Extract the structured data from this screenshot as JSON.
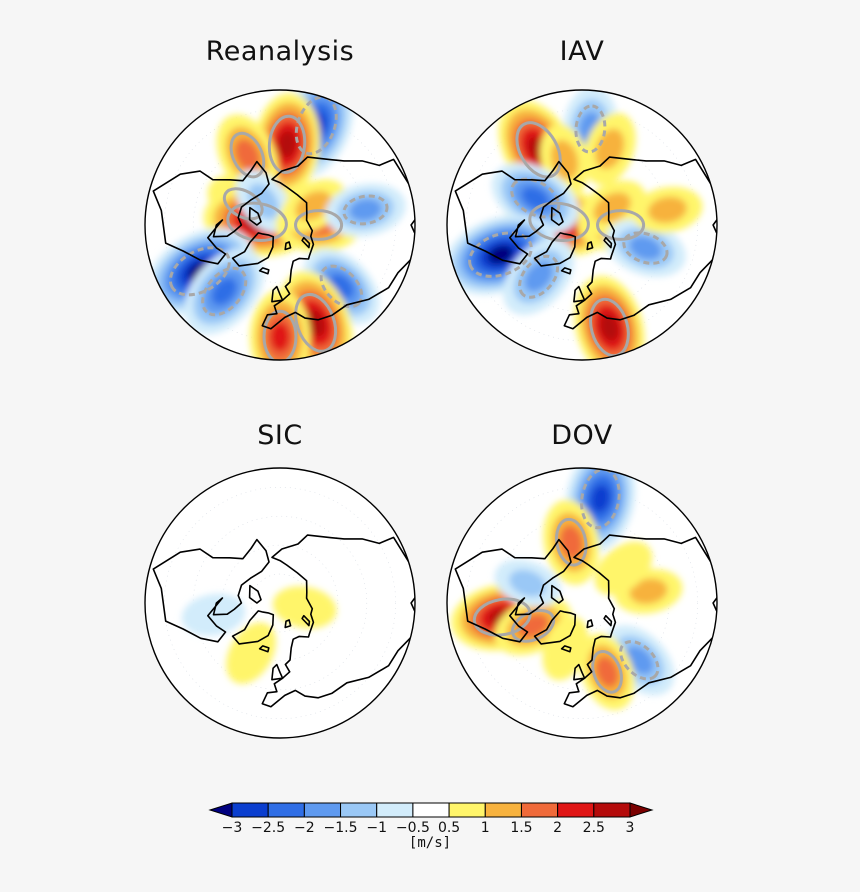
{
  "chart_data": [
    {
      "type": "heatmap",
      "title": "Reanalysis",
      "projection": "north-polar-stereographic",
      "coastlines": true,
      "contour_lines": "grey (solid positive, dashed negative)",
      "anomalies": [
        {
          "lon": 160,
          "lat": 35,
          "value": -2.6
        },
        {
          "lon": 175,
          "lat": 48,
          "value": 2.4
        },
        {
          "lon": 205,
          "lat": 50,
          "value": 1.6
        },
        {
          "lon": 240,
          "lat": 68,
          "value": 1.2
        },
        {
          "lon": 262,
          "lat": 78,
          "value": 2.6
        },
        {
          "lon": 215,
          "lat": 75,
          "value": -0.9
        },
        {
          "lon": 300,
          "lat": 42,
          "value": -3.0
        },
        {
          "lon": 320,
          "lat": 45,
          "value": -2.2
        },
        {
          "lon": 90,
          "lat": 70,
          "value": 1.6
        },
        {
          "lon": 120,
          "lat": 70,
          "value": 0.9
        },
        {
          "lon": 45,
          "lat": 45,
          "value": -1.8
        },
        {
          "lon": 20,
          "lat": 36,
          "value": 2.6
        },
        {
          "lon": 0,
          "lat": 32,
          "value": 2.0
        },
        {
          "lon": 100,
          "lat": 45,
          "value": -1.4
        }
      ]
    },
    {
      "type": "heatmap",
      "title": "IAV",
      "projection": "north-polar-stereographic",
      "coastlines": true,
      "contour_lines": "grey (solid positive, dashed negative)",
      "anomalies": [
        {
          "lon": 175,
          "lat": 40,
          "value": -1.6
        },
        {
          "lon": 210,
          "lat": 45,
          "value": 2.6
        },
        {
          "lon": 195,
          "lat": 55,
          "value": 1.0
        },
        {
          "lon": 160,
          "lat": 48,
          "value": 1.1
        },
        {
          "lon": 262,
          "lat": 78,
          "value": 2.6
        },
        {
          "lon": 240,
          "lat": 62,
          "value": -2.0
        },
        {
          "lon": 290,
          "lat": 45,
          "value": -3.0
        },
        {
          "lon": 320,
          "lat": 55,
          "value": -1.7
        },
        {
          "lon": 90,
          "lat": 70,
          "value": 1.6
        },
        {
          "lon": 120,
          "lat": 72,
          "value": 1.0
        },
        {
          "lon": 70,
          "lat": 55,
          "value": -1.5
        },
        {
          "lon": 15,
          "lat": 35,
          "value": 2.5
        },
        {
          "lon": 100,
          "lat": 45,
          "value": 0.9
        }
      ]
    },
    {
      "type": "heatmap",
      "title": "SIC",
      "projection": "north-polar-stereographic",
      "coastlines": true,
      "anomalies": [
        {
          "lon": 330,
          "lat": 60,
          "value": 0.7
        },
        {
          "lon": 80,
          "lat": 77,
          "value": 0.6
        },
        {
          "lon": 280,
          "lat": 55,
          "value": -0.6
        }
      ]
    },
    {
      "type": "heatmap",
      "title": "DOV",
      "projection": "north-polar-stereographic",
      "coastlines": true,
      "contour_lines": "grey (solid positive, dashed negative)",
      "anomalies": [
        {
          "lon": 170,
          "lat": 35,
          "value": -2.6
        },
        {
          "lon": 190,
          "lat": 58,
          "value": 1.6
        },
        {
          "lon": 280,
          "lat": 48,
          "value": 2.4
        },
        {
          "lon": 295,
          "lat": 62,
          "value": 1.4
        },
        {
          "lon": 250,
          "lat": 60,
          "value": -0.8
        },
        {
          "lon": 45,
          "lat": 48,
          "value": -1.5
        },
        {
          "lon": 20,
          "lat": 52,
          "value": 1.3
        },
        {
          "lon": 100,
          "lat": 55,
          "value": 0.8
        },
        {
          "lon": 130,
          "lat": 62,
          "value": 0.7
        },
        {
          "lon": 340,
          "lat": 65,
          "value": 0.7
        }
      ]
    }
  ],
  "colorbar": {
    "levels": [
      -3,
      -2.5,
      -2,
      -1.5,
      -1,
      -0.5,
      0.5,
      1,
      1.5,
      2,
      2.5,
      3
    ],
    "tick_labels": [
      "−3",
      "−2.5",
      "−2",
      "−1.5",
      "−1",
      "−0.5",
      "0.5",
      "1",
      "1.5",
      "2",
      "2.5",
      "3"
    ],
    "colors": [
      "#00007f",
      "#0a3ecf",
      "#2f6ee6",
      "#5f9af0",
      "#9ac8f6",
      "#d2ecfb",
      "#ffffff",
      "#fff56a",
      "#f7b23e",
      "#f06a3a",
      "#e01515",
      "#b40a0a",
      "#7a0000"
    ],
    "units": "[m/s]"
  }
}
